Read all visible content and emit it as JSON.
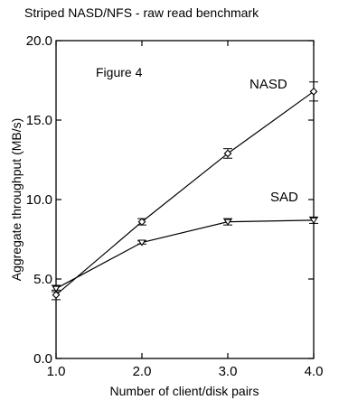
{
  "chart_data": {
    "type": "line",
    "title": "Striped NASD/NFS - raw read benchmark",
    "annotation": "Figure 4",
    "xlabel": "Number of client/disk pairs",
    "ylabel": "Aggregate throughput (MB/s)",
    "xlim": [
      1.0,
      4.0
    ],
    "ylim": [
      0.0,
      20.0
    ],
    "xticks": [
      1.0,
      2.0,
      3.0,
      4.0
    ],
    "xtick_labels": [
      "1.0",
      "2.0",
      "3.0",
      "4.0"
    ],
    "yticks": [
      0.0,
      5.0,
      10.0,
      15.0,
      20.0
    ],
    "ytick_labels": [
      "0.0",
      "5.0",
      "10.0",
      "15.0",
      "20.0"
    ],
    "grid": false,
    "legend": "inline labels at line ends",
    "x": [
      1.0,
      2.0,
      3.0,
      4.0
    ],
    "series": [
      {
        "name": "NASD",
        "marker": "diamond",
        "values": [
          4.0,
          8.6,
          12.9,
          16.8
        ],
        "error": [
          0.3,
          0.2,
          0.3,
          0.6
        ]
      },
      {
        "name": "SAD",
        "marker": "triangle-down",
        "values": [
          4.4,
          7.3,
          8.6,
          8.7
        ],
        "error": [
          0.2,
          0.1,
          0.2,
          0.2
        ]
      }
    ]
  }
}
